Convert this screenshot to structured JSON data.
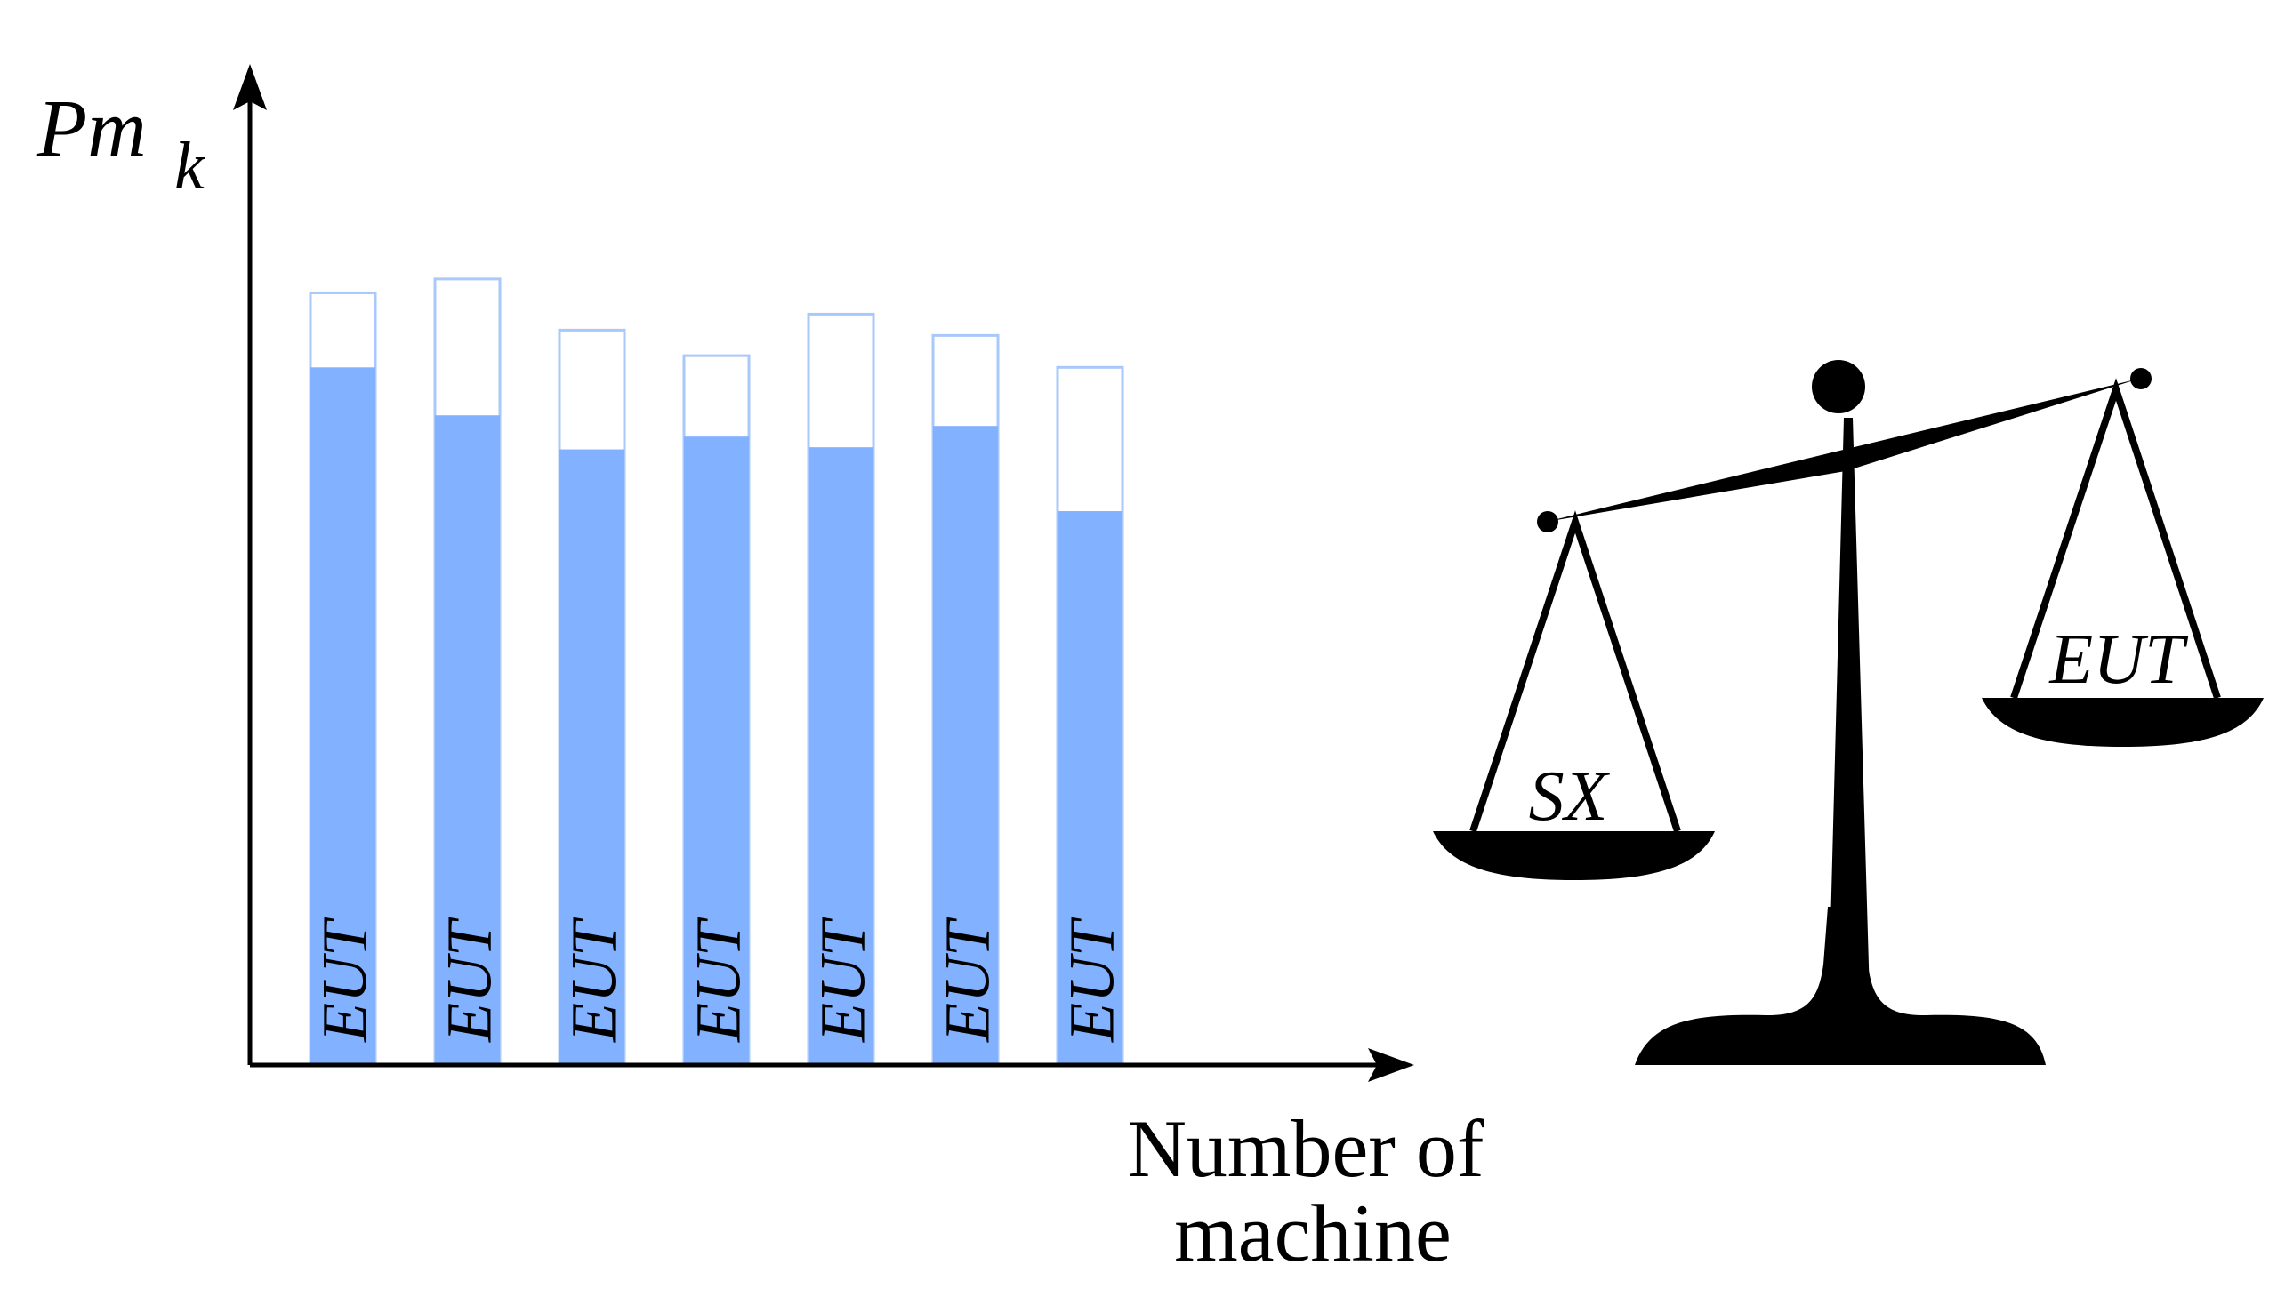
{
  "chart_data": {
    "type": "bar",
    "ylabel_main": "Pm",
    "ylabel_sub": "k",
    "xlabel_line1": "Number of",
    "xlabel_line2": "machine",
    "bar_label": "EUT",
    "ylim": [
      0,
      1
    ],
    "capacity": [
      0.725,
      0.738,
      0.69,
      0.666,
      0.705,
      0.685,
      0.655
    ],
    "filled": [
      0.655,
      0.61,
      0.578,
      0.59,
      0.58,
      0.6,
      0.52
    ]
  },
  "scale": {
    "left_pan_label": "SX",
    "right_pan_label": "EUT"
  },
  "colors": {
    "bar_fill": "#82b1ff",
    "bar_outline": "#a9c8fb",
    "axis": "#000000",
    "scale": "#000000"
  }
}
